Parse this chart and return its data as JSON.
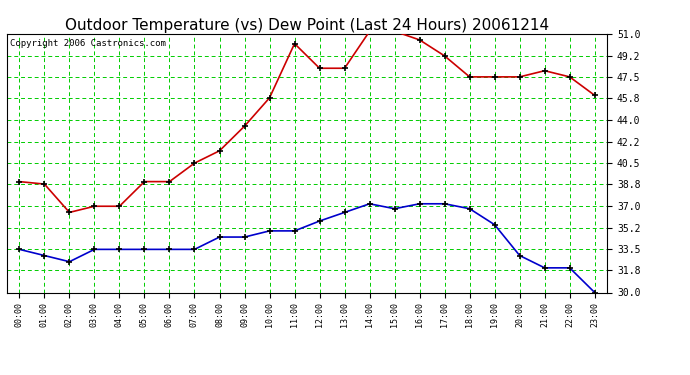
{
  "title": "Outdoor Temperature (vs) Dew Point (Last 24 Hours) 20061214",
  "copyright": "Copyright 2006 Castronics.com",
  "x_labels": [
    "00:00",
    "01:00",
    "02:00",
    "03:00",
    "04:00",
    "05:00",
    "06:00",
    "07:00",
    "08:00",
    "09:00",
    "10:00",
    "11:00",
    "12:00",
    "13:00",
    "14:00",
    "15:00",
    "16:00",
    "17:00",
    "18:00",
    "19:00",
    "20:00",
    "21:00",
    "22:00",
    "23:00"
  ],
  "temp_data": [
    39.0,
    38.8,
    36.5,
    37.0,
    37.0,
    39.0,
    39.0,
    40.5,
    41.5,
    43.5,
    45.8,
    50.2,
    48.2,
    48.2,
    51.2,
    51.2,
    50.5,
    49.2,
    47.5,
    47.5,
    47.5,
    48.0,
    47.5,
    46.0
  ],
  "dew_data": [
    33.5,
    33.0,
    32.5,
    33.5,
    33.5,
    33.5,
    33.5,
    33.5,
    34.5,
    34.5,
    35.0,
    35.0,
    35.8,
    36.5,
    37.2,
    36.8,
    37.2,
    37.2,
    36.8,
    35.5,
    33.0,
    32.0,
    32.0,
    30.0
  ],
  "temp_color": "#cc0000",
  "dew_color": "#0000cc",
  "bg_color": "#ffffff",
  "grid_color": "#00cc00",
  "ylim": [
    30.0,
    51.0
  ],
  "yticks": [
    30.0,
    31.8,
    33.5,
    35.2,
    37.0,
    38.8,
    40.5,
    42.2,
    44.0,
    45.8,
    47.5,
    49.2,
    51.0
  ],
  "title_fontsize": 11,
  "copyright_fontsize": 6.5,
  "tick_fontsize": 7,
  "xtick_fontsize": 6
}
